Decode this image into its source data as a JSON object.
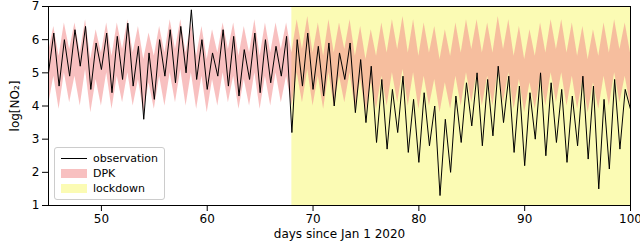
{
  "chart_data": {
    "type": "line",
    "xlabel": "days since Jan 1 2020",
    "ylabel": "log[NO₂]",
    "xlim": [
      45,
      100
    ],
    "xticks": [
      50,
      60,
      70,
      80,
      90,
      100
    ],
    "ylim": [
      1,
      7
    ],
    "yticks": [
      1,
      2,
      3,
      4,
      5,
      6,
      7
    ],
    "grid": false,
    "legend": "lower left",
    "series": [
      {
        "name": "lockdown",
        "type": "span",
        "color": "#fbfbb4",
        "start": 68,
        "end": 100
      },
      {
        "name": "DPK",
        "type": "band",
        "color": "#f28c8c",
        "x": [
          45,
          45.5,
          46,
          46.5,
          47,
          47.5,
          48,
          48.5,
          49,
          49.5,
          50,
          50.5,
          51,
          51.5,
          52,
          52.5,
          53,
          53.5,
          54,
          54.5,
          55,
          55.5,
          56,
          56.5,
          57,
          57.5,
          58,
          58.5,
          59,
          59.5,
          60,
          60.5,
          61,
          61.5,
          62,
          62.5,
          63,
          63.5,
          64,
          64.5,
          65,
          65.5,
          66,
          66.5,
          67,
          67.5,
          68,
          68.5,
          69,
          69.5,
          70,
          70.5,
          71,
          71.5,
          72,
          72.5,
          73,
          73.5,
          74,
          74.5,
          75,
          75.5,
          76,
          76.5,
          77,
          77.5,
          78,
          78.5,
          79,
          79.5,
          80,
          80.5,
          81,
          81.5,
          82,
          82.5,
          83,
          83.5,
          84,
          84.5,
          85,
          85.5,
          86,
          86.5,
          87,
          87.5,
          88,
          88.5,
          89,
          89.5,
          90,
          90.5,
          91,
          91.5,
          92,
          92.5,
          93,
          93.5,
          94,
          94.5,
          95,
          95.5,
          96,
          96.5,
          97,
          97.5,
          98,
          98.5,
          99,
          99.5,
          100
        ],
        "lower": [
          4.0,
          4.9,
          3.9,
          5.0,
          4.1,
          4.9,
          4.0,
          5.1,
          3.8,
          4.8,
          4.0,
          5.0,
          3.9,
          4.9,
          4.1,
          5.0,
          4.0,
          4.8,
          3.8,
          4.7,
          3.9,
          4.9,
          4.0,
          5.0,
          4.1,
          5.1,
          4.0,
          5.0,
          3.9,
          4.9,
          3.8,
          4.8,
          4.0,
          5.0,
          4.1,
          4.9,
          3.9,
          4.8,
          4.0,
          5.0,
          3.9,
          4.9,
          4.0,
          5.0,
          4.1,
          4.9,
          4.0,
          5.0,
          4.1,
          5.1,
          4.0,
          4.9,
          3.9,
          5.0,
          4.0,
          4.9,
          4.1,
          5.0,
          3.9,
          4.8,
          3.8,
          4.7,
          3.9,
          4.9,
          4.0,
          5.0,
          4.1,
          5.1,
          4.0,
          5.0,
          3.9,
          4.9,
          4.0,
          4.8,
          3.8,
          4.7,
          3.9,
          4.9,
          4.0,
          5.0,
          4.1,
          5.0,
          4.0,
          4.9,
          4.0,
          5.1,
          4.1,
          5.0,
          3.9,
          4.8,
          3.8,
          4.7,
          3.9,
          4.9,
          4.0,
          5.0,
          4.1,
          5.0,
          4.0,
          4.9,
          3.9,
          4.8,
          3.8,
          4.7,
          3.9,
          4.9,
          4.0,
          5.0,
          4.1,
          4.9,
          4.0
        ],
        "upper": [
          5.6,
          6.4,
          5.5,
          6.5,
          5.7,
          6.5,
          5.6,
          6.6,
          5.4,
          6.3,
          5.6,
          6.5,
          5.5,
          6.5,
          5.7,
          6.6,
          5.6,
          6.4,
          5.4,
          6.2,
          5.5,
          6.4,
          5.6,
          6.6,
          5.7,
          6.6,
          5.6,
          6.5,
          5.5,
          6.4,
          5.4,
          6.3,
          5.6,
          6.5,
          5.7,
          6.5,
          5.5,
          6.4,
          5.6,
          6.6,
          5.5,
          6.5,
          5.6,
          6.5,
          5.7,
          6.5,
          5.6,
          6.6,
          5.7,
          6.7,
          5.6,
          6.5,
          5.5,
          6.6,
          5.6,
          6.5,
          5.7,
          6.6,
          5.5,
          6.4,
          5.4,
          6.3,
          5.5,
          6.5,
          5.6,
          6.6,
          5.7,
          6.7,
          5.6,
          6.6,
          5.5,
          6.5,
          5.6,
          6.4,
          5.4,
          6.3,
          5.5,
          6.5,
          5.6,
          6.6,
          5.7,
          6.6,
          5.6,
          6.5,
          5.6,
          6.7,
          5.7,
          6.6,
          5.5,
          6.4,
          5.4,
          6.3,
          5.5,
          6.5,
          5.6,
          6.6,
          5.7,
          6.6,
          5.6,
          6.5,
          5.5,
          6.4,
          5.4,
          6.3,
          5.5,
          6.5,
          5.6,
          6.6,
          5.7,
          6.5,
          5.6
        ]
      },
      {
        "name": "observation",
        "type": "line",
        "color": "#000000",
        "x": [
          45,
          45.5,
          46,
          46.5,
          47,
          47.5,
          48,
          48.5,
          49,
          49.5,
          50,
          50.5,
          51,
          51.5,
          52,
          52.5,
          53,
          53.5,
          54,
          54.5,
          55,
          55.5,
          56,
          56.5,
          57,
          57.5,
          58,
          58.5,
          59,
          59.5,
          60,
          60.5,
          61,
          61.5,
          62,
          62.5,
          63,
          63.5,
          64,
          64.5,
          65,
          65.5,
          66,
          66.5,
          67,
          67.5,
          68,
          68.5,
          69,
          69.5,
          70,
          70.5,
          71,
          71.5,
          72,
          72.5,
          73,
          73.5,
          74,
          74.5,
          75,
          75.5,
          76,
          76.5,
          77,
          77.5,
          78,
          78.5,
          79,
          79.5,
          80,
          80.5,
          81,
          81.5,
          82,
          82.5,
          83,
          83.5,
          84,
          84.5,
          85,
          85.5,
          86,
          86.5,
          87,
          87.5,
          88,
          88.5,
          89,
          89.5,
          90,
          90.5,
          91,
          91.5,
          92,
          92.5,
          93,
          93.5,
          94,
          94.5,
          95,
          95.5,
          96,
          96.5,
          97,
          97.5,
          98,
          98.5,
          99,
          99.5,
          100
        ],
        "values": [
          5.0,
          6.2,
          4.6,
          6.0,
          4.9,
          6.3,
          5.2,
          6.4,
          4.5,
          5.9,
          5.1,
          6.2,
          4.4,
          6.1,
          4.8,
          6.5,
          4.6,
          5.8,
          3.6,
          5.6,
          4.2,
          6.0,
          4.9,
          6.3,
          4.7,
          6.4,
          5.0,
          6.9,
          4.8,
          6.0,
          4.5,
          5.6,
          4.9,
          6.3,
          4.6,
          6.1,
          4.3,
          5.7,
          4.8,
          6.2,
          4.4,
          6.0,
          4.7,
          5.8,
          4.9,
          6.1,
          3.2,
          6.0,
          4.6,
          6.2,
          4.5,
          5.8,
          4.3,
          5.9,
          4.0,
          5.6,
          4.8,
          5.9,
          3.8,
          5.4,
          3.5,
          5.2,
          2.9,
          4.8,
          2.7,
          4.5,
          3.2,
          4.9,
          2.6,
          4.2,
          2.3,
          4.4,
          2.8,
          4.0,
          1.3,
          3.6,
          2.0,
          4.3,
          2.9,
          4.7,
          3.4,
          5.0,
          2.8,
          4.8,
          3.1,
          5.2,
          3.5,
          4.9,
          2.6,
          4.6,
          2.2,
          4.4,
          3.0,
          5.0,
          2.5,
          4.7,
          2.9,
          4.5,
          2.3,
          4.3,
          2.8,
          4.9,
          2.4,
          4.6,
          1.5,
          4.2,
          2.1,
          4.8,
          2.7,
          4.5,
          3.9
        ]
      }
    ]
  }
}
